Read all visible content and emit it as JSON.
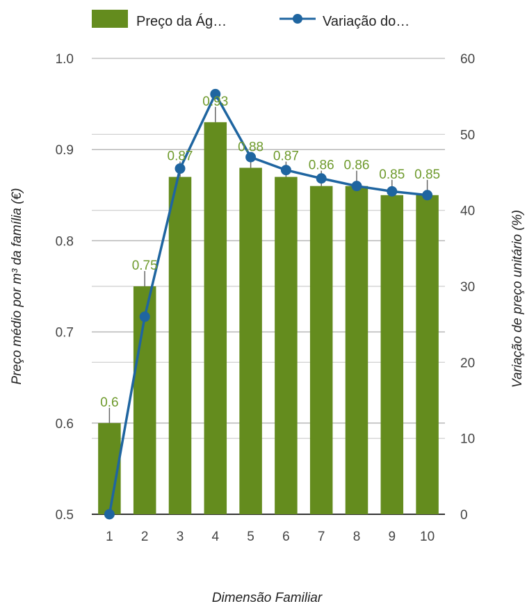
{
  "chart_data": {
    "type": "bar",
    "title": "",
    "xlabel": "Dimensão Familiar",
    "ylabel": "Preço médio por m³ da família (€)",
    "y2label": "Variação de preço unitário (%)",
    "categories": [
      "1",
      "2",
      "3",
      "4",
      "5",
      "6",
      "7",
      "8",
      "9",
      "10"
    ],
    "ylim": [
      0.5,
      1.0
    ],
    "y_ticks": [
      "0.5",
      "0.6",
      "0.7",
      "0.8",
      "0.9",
      "1.0"
    ],
    "y2lim": [
      0,
      60
    ],
    "y2_ticks": [
      "0",
      "10",
      "20",
      "30",
      "40",
      "50",
      "60"
    ],
    "legend_position": "top",
    "grid": true,
    "series": [
      {
        "name": "Preço da Ág…",
        "type": "bar",
        "axis": "left",
        "color": "#648c1e",
        "values": [
          0.6,
          0.75,
          0.87,
          0.93,
          0.88,
          0.87,
          0.86,
          0.86,
          0.85,
          0.85
        ],
        "labels": [
          "0.6",
          "0.75",
          "0.87",
          "0.93",
          "0.88",
          "0.87",
          "0.86",
          "0.86",
          "0.85",
          "0.85"
        ]
      },
      {
        "name": "Variação do…",
        "type": "line",
        "axis": "right",
        "color": "#1f65a0",
        "values": [
          0,
          26,
          45.5,
          55.3,
          47,
          45.3,
          44.2,
          43.2,
          42.5,
          42
        ]
      }
    ]
  }
}
